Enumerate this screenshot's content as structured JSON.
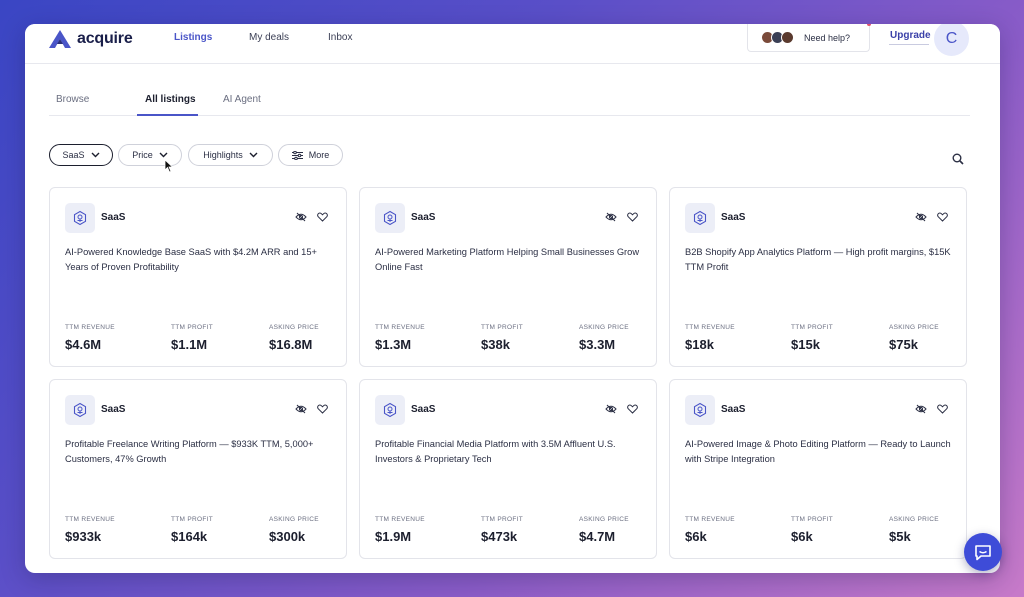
{
  "brand": {
    "name": "acquire",
    "color": "#4a55c8"
  },
  "nav": {
    "links": [
      {
        "label": "Listings",
        "active": true
      },
      {
        "label": "My deals",
        "active": false
      },
      {
        "label": "Inbox",
        "active": false
      }
    ],
    "help_label": "Need help?",
    "upgrade_label": "Upgrade",
    "user_initial": "C"
  },
  "tabs": [
    {
      "label": "Browse",
      "active": false
    },
    {
      "label": "All listings",
      "active": true
    },
    {
      "label": "AI Agent",
      "active": false
    }
  ],
  "filters": [
    {
      "label": "SaaS",
      "icon": "chevron-down-icon",
      "selected": true
    },
    {
      "label": "Price",
      "icon": "chevron-down-icon",
      "selected": false
    },
    {
      "label": "Highlights",
      "icon": "chevron-down-icon",
      "selected": false
    },
    {
      "label": "More",
      "icon": "sliders-icon",
      "selected": false
    }
  ],
  "metric_labels": {
    "revenue": "TTM REVENUE",
    "profit": "TTM PROFIT",
    "asking": "ASKING PRICE"
  },
  "listings": [
    {
      "category": "SaaS",
      "title": "AI-Powered Knowledge Base SaaS with $4.2M ARR and 15+ Years of Proven Profitability",
      "revenue": "$4.6M",
      "profit": "$1.1M",
      "asking": "$16.8M"
    },
    {
      "category": "SaaS",
      "title": "AI-Powered Marketing Platform Helping Small Businesses Grow Online Fast",
      "revenue": "$1.3M",
      "profit": "$38k",
      "asking": "$3.3M"
    },
    {
      "category": "SaaS",
      "title": "B2B Shopify App Analytics Platform — High profit margins, $15K TTM Profit",
      "revenue": "$18k",
      "profit": "$15k",
      "asking": "$75k"
    },
    {
      "category": "SaaS",
      "title": "Profitable Freelance Writing Platform — $933K TTM, 5,000+ Customers, 47% Growth",
      "revenue": "$933k",
      "profit": "$164k",
      "asking": "$300k"
    },
    {
      "category": "SaaS",
      "title": "Profitable Financial Media Platform with 3.5M Affluent U.S. Investors & Proprietary Tech",
      "revenue": "$1.9M",
      "profit": "$473k",
      "asking": "$4.7M"
    },
    {
      "category": "SaaS",
      "title": "AI-Powered Image & Photo Editing Platform — Ready to Launch with Stripe Integration",
      "revenue": "$6k",
      "profit": "$6k",
      "asking": "$5k"
    }
  ]
}
